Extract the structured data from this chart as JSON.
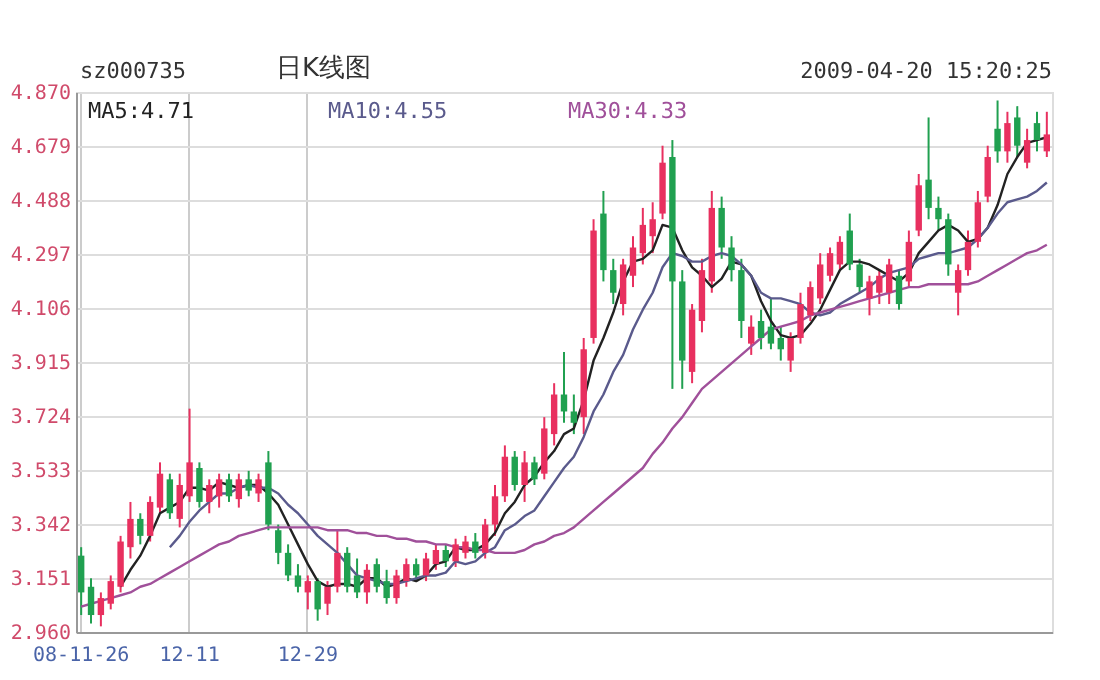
{
  "chart_data": {
    "type": "candlestick",
    "title": "日K线图",
    "annotations": [
      "sz000735",
      "2009-04-20 15:20:25"
    ],
    "categories": [
      "08-11-26",
      null,
      null,
      null,
      null,
      null,
      null,
      null,
      null,
      null,
      null,
      "12-11",
      null,
      null,
      null,
      null,
      null,
      null,
      null,
      null,
      null,
      null,
      null,
      "12-29",
      null,
      null,
      null,
      null,
      null,
      null,
      null,
      null,
      null,
      null,
      null,
      null,
      null,
      null,
      null,
      null,
      null,
      null,
      null,
      null,
      null,
      null,
      null,
      null,
      null,
      null,
      null,
      null,
      null,
      null,
      null,
      null,
      null,
      null,
      null,
      null,
      null,
      null,
      null,
      null,
      null,
      null,
      null,
      null,
      null,
      null,
      null,
      null,
      null,
      null,
      null,
      null,
      null,
      null,
      null,
      null,
      null,
      null,
      null,
      null,
      null,
      null,
      null,
      null,
      null,
      null,
      null,
      null,
      null,
      null,
      null,
      null,
      null,
      null,
      null
    ],
    "ohlc": [
      [
        3.23,
        3.26,
        3.02,
        3.1
      ],
      [
        3.12,
        3.15,
        2.99,
        3.02
      ],
      [
        3.02,
        3.1,
        2.98,
        3.08
      ],
      [
        3.06,
        3.16,
        3.04,
        3.14
      ],
      [
        3.12,
        3.3,
        3.1,
        3.28
      ],
      [
        3.26,
        3.42,
        3.22,
        3.36
      ],
      [
        3.36,
        3.38,
        3.27,
        3.3
      ],
      [
        3.3,
        3.44,
        3.28,
        3.42
      ],
      [
        3.4,
        3.56,
        3.38,
        3.52
      ],
      [
        3.5,
        3.52,
        3.36,
        3.38
      ],
      [
        3.36,
        3.52,
        3.33,
        3.48
      ],
      [
        3.44,
        3.75,
        3.42,
        3.56
      ],
      [
        3.54,
        3.56,
        3.4,
        3.42
      ],
      [
        3.42,
        3.5,
        3.38,
        3.48
      ],
      [
        3.44,
        3.52,
        3.4,
        3.5
      ],
      [
        3.5,
        3.52,
        3.42,
        3.44
      ],
      [
        3.43,
        3.52,
        3.4,
        3.5
      ],
      [
        3.5,
        3.53,
        3.44,
        3.46
      ],
      [
        3.45,
        3.52,
        3.42,
        3.5
      ],
      [
        3.56,
        3.6,
        3.32,
        3.34
      ],
      [
        3.32,
        3.34,
        3.2,
        3.24
      ],
      [
        3.24,
        3.27,
        3.14,
        3.16
      ],
      [
        3.16,
        3.2,
        3.1,
        3.12
      ],
      [
        3.1,
        3.16,
        3.04,
        3.14
      ],
      [
        3.14,
        3.15,
        3.0,
        3.04
      ],
      [
        3.06,
        3.14,
        3.02,
        3.12
      ],
      [
        3.12,
        3.32,
        3.1,
        3.24
      ],
      [
        3.24,
        3.26,
        3.1,
        3.12
      ],
      [
        3.16,
        3.22,
        3.08,
        3.1
      ],
      [
        3.1,
        3.2,
        3.06,
        3.18
      ],
      [
        3.2,
        3.22,
        3.1,
        3.12
      ],
      [
        3.14,
        3.18,
        3.06,
        3.08
      ],
      [
        3.08,
        3.18,
        3.06,
        3.16
      ],
      [
        3.14,
        3.22,
        3.12,
        3.2
      ],
      [
        3.2,
        3.22,
        3.14,
        3.16
      ],
      [
        3.16,
        3.24,
        3.14,
        3.22
      ],
      [
        3.2,
        3.27,
        3.18,
        3.25
      ],
      [
        3.25,
        3.27,
        3.19,
        3.21
      ],
      [
        3.21,
        3.29,
        3.19,
        3.27
      ],
      [
        3.24,
        3.3,
        3.22,
        3.28
      ],
      [
        3.28,
        3.31,
        3.22,
        3.24
      ],
      [
        3.24,
        3.36,
        3.22,
        3.34
      ],
      [
        3.34,
        3.48,
        3.3,
        3.44
      ],
      [
        3.44,
        3.62,
        3.42,
        3.58
      ],
      [
        3.58,
        3.6,
        3.46,
        3.48
      ],
      [
        3.48,
        3.6,
        3.42,
        3.56
      ],
      [
        3.56,
        3.58,
        3.48,
        3.5
      ],
      [
        3.52,
        3.72,
        3.5,
        3.68
      ],
      [
        3.66,
        3.84,
        3.62,
        3.8
      ],
      [
        3.8,
        3.95,
        3.7,
        3.74
      ],
      [
        3.74,
        3.8,
        3.66,
        3.7
      ],
      [
        3.72,
        4.0,
        3.66,
        3.96
      ],
      [
        4.0,
        4.42,
        3.98,
        4.38
      ],
      [
        4.44,
        4.52,
        4.2,
        4.24
      ],
      [
        4.24,
        4.28,
        4.12,
        4.16
      ],
      [
        4.12,
        4.28,
        4.08,
        4.26
      ],
      [
        4.22,
        4.36,
        4.18,
        4.32
      ],
      [
        4.3,
        4.46,
        4.26,
        4.4
      ],
      [
        4.36,
        4.48,
        4.3,
        4.42
      ],
      [
        4.44,
        4.68,
        4.42,
        4.62
      ],
      [
        4.64,
        4.7,
        3.82,
        4.2
      ],
      [
        4.2,
        4.24,
        3.82,
        3.92
      ],
      [
        3.88,
        4.12,
        3.84,
        4.1
      ],
      [
        4.06,
        4.28,
        4.02,
        4.24
      ],
      [
        4.2,
        4.52,
        4.16,
        4.46
      ],
      [
        4.46,
        4.5,
        4.28,
        4.32
      ],
      [
        4.32,
        4.36,
        4.2,
        4.24
      ],
      [
        4.24,
        4.28,
        4.0,
        4.06
      ],
      [
        3.98,
        4.08,
        3.94,
        4.04
      ],
      [
        4.06,
        4.1,
        3.96,
        4.0
      ],
      [
        4.04,
        4.14,
        3.96,
        3.98
      ],
      [
        4.0,
        4.04,
        3.92,
        3.96
      ],
      [
        3.92,
        4.02,
        3.88,
        4.0
      ],
      [
        4.0,
        4.16,
        3.98,
        4.12
      ],
      [
        4.08,
        4.2,
        4.06,
        4.18
      ],
      [
        4.14,
        4.3,
        4.12,
        4.26
      ],
      [
        4.22,
        4.32,
        4.2,
        4.3
      ],
      [
        4.26,
        4.36,
        4.24,
        4.34
      ],
      [
        4.38,
        4.44,
        4.24,
        4.26
      ],
      [
        4.26,
        4.28,
        4.16,
        4.18
      ],
      [
        4.14,
        4.22,
        4.08,
        4.2
      ],
      [
        4.16,
        4.24,
        4.12,
        4.22
      ],
      [
        4.16,
        4.28,
        4.12,
        4.26
      ],
      [
        4.22,
        4.24,
        4.1,
        4.12
      ],
      [
        4.2,
        4.38,
        4.18,
        4.34
      ],
      [
        4.38,
        4.58,
        4.36,
        4.54
      ],
      [
        4.56,
        4.78,
        4.42,
        4.46
      ],
      [
        4.46,
        4.5,
        4.38,
        4.42
      ],
      [
        4.42,
        4.44,
        4.22,
        4.26
      ],
      [
        4.16,
        4.26,
        4.08,
        4.24
      ],
      [
        4.24,
        4.38,
        4.22,
        4.34
      ],
      [
        4.34,
        4.52,
        4.32,
        4.48
      ],
      [
        4.5,
        4.68,
        4.48,
        4.64
      ],
      [
        4.74,
        4.84,
        4.62,
        4.66
      ],
      [
        4.66,
        4.8,
        4.62,
        4.76
      ],
      [
        4.78,
        4.82,
        4.64,
        4.68
      ],
      [
        4.62,
        4.74,
        4.6,
        4.7
      ],
      [
        4.76,
        4.8,
        4.66,
        4.7
      ],
      [
        4.66,
        4.8,
        4.64,
        4.72
      ]
    ],
    "colors": [
      "#20a050",
      "#20a050",
      "#e8305f",
      "#e8305f",
      "#e8305f",
      "#e8305f",
      "#20a050",
      "#e8305f",
      "#e8305f",
      "#20a050",
      "#e8305f",
      "#e8305f",
      "#20a050",
      "#e8305f",
      "#e8305f",
      "#20a050",
      "#e8305f",
      "#20a050",
      "#e8305f",
      "#20a050",
      "#20a050",
      "#20a050",
      "#20a050",
      "#e8305f",
      "#20a050",
      "#e8305f",
      "#e8305f",
      "#20a050",
      "#20a050",
      "#e8305f",
      "#20a050",
      "#20a050",
      "#e8305f",
      "#e8305f",
      "#20a050",
      "#e8305f",
      "#e8305f",
      "#20a050",
      "#e8305f",
      "#e8305f",
      "#20a050",
      "#e8305f",
      "#e8305f",
      "#e8305f",
      "#20a050",
      "#e8305f",
      "#20a050",
      "#e8305f",
      "#e8305f",
      "#20a050",
      "#20a050",
      "#e8305f",
      "#e8305f",
      "#20a050",
      "#20a050",
      "#e8305f",
      "#e8305f",
      "#e8305f",
      "#e8305f",
      "#e8305f",
      "#20a050",
      "#20a050",
      "#e8305f",
      "#e8305f",
      "#e8305f",
      "#20a050",
      "#20a050",
      "#20a050",
      "#e8305f",
      "#20a050",
      "#20a050",
      "#20a050",
      "#e8305f",
      "#e8305f",
      "#e8305f",
      "#e8305f",
      "#e8305f",
      "#e8305f",
      "#20a050",
      "#20a050",
      "#e8305f",
      "#e8305f",
      "#e8305f",
      "#20a050",
      "#e8305f",
      "#e8305f",
      "#20a050",
      "#20a050",
      "#20a050",
      "#e8305f",
      "#e8305f",
      "#e8305f",
      "#e8305f",
      "#20a050",
      "#e8305f",
      "#20a050",
      "#e8305f",
      "#20a050",
      "#e8305f"
    ],
    "series": [
      {
        "type": "line",
        "name": "MA5:4.71",
        "color": "#222222",
        "values": [
          null,
          null,
          null,
          null,
          3.12,
          3.18,
          3.23,
          3.3,
          3.38,
          3.4,
          3.42,
          3.47,
          3.47,
          3.46,
          3.49,
          3.48,
          3.47,
          3.48,
          3.48,
          3.45,
          3.41,
          3.34,
          3.27,
          3.2,
          3.14,
          3.12,
          3.13,
          3.13,
          3.12,
          3.15,
          3.15,
          3.12,
          3.13,
          3.15,
          3.14,
          3.16,
          3.2,
          3.21,
          3.26,
          3.25,
          3.25,
          3.27,
          3.31,
          3.38,
          3.42,
          3.48,
          3.51,
          3.56,
          3.6,
          3.66,
          3.68,
          3.78,
          3.92,
          4.0,
          4.09,
          4.2,
          4.27,
          4.28,
          4.31,
          4.4,
          4.39,
          4.31,
          4.25,
          4.22,
          4.18,
          4.21,
          4.27,
          4.26,
          4.22,
          4.13,
          4.06,
          4.01,
          4.0,
          4.01,
          4.05,
          4.1,
          4.17,
          4.24,
          4.27,
          4.27,
          4.26,
          4.24,
          4.22,
          4.2,
          4.23,
          4.3,
          4.34,
          4.38,
          4.4,
          4.38,
          4.34,
          4.35,
          4.39,
          4.47,
          4.58,
          4.64,
          4.69,
          4.7,
          4.71
        ]
      },
      {
        "type": "line",
        "name": "MA10:4.55",
        "color": "#5a5a8c",
        "values": [
          null,
          null,
          null,
          null,
          null,
          null,
          null,
          null,
          null,
          3.26,
          3.3,
          3.35,
          3.39,
          3.42,
          3.45,
          3.45,
          3.47,
          3.48,
          3.47,
          3.47,
          3.45,
          3.41,
          3.38,
          3.34,
          3.3,
          3.27,
          3.24,
          3.2,
          3.16,
          3.15,
          3.14,
          3.13,
          3.13,
          3.14,
          3.15,
          3.16,
          3.16,
          3.17,
          3.21,
          3.2,
          3.21,
          3.24,
          3.26,
          3.32,
          3.34,
          3.37,
          3.39,
          3.44,
          3.49,
          3.54,
          3.58,
          3.65,
          3.74,
          3.8,
          3.88,
          3.94,
          4.03,
          4.1,
          4.16,
          4.25,
          4.3,
          4.29,
          4.27,
          4.27,
          4.29,
          4.3,
          4.29,
          4.26,
          4.22,
          4.16,
          4.14,
          4.14,
          4.13,
          4.12,
          4.09,
          4.08,
          4.09,
          4.12,
          4.14,
          4.16,
          4.18,
          4.21,
          4.23,
          4.24,
          4.25,
          4.28,
          4.29,
          4.3,
          4.3,
          4.31,
          4.32,
          4.35,
          4.39,
          4.44,
          4.48,
          4.49,
          4.5,
          4.52,
          4.55
        ]
      },
      {
        "type": "line",
        "name": "MA30:4.33",
        "color": "#a0509a",
        "values": [
          3.05,
          3.06,
          3.07,
          3.08,
          3.09,
          3.1,
          3.12,
          3.13,
          3.15,
          3.17,
          3.19,
          3.21,
          3.23,
          3.25,
          3.27,
          3.28,
          3.3,
          3.31,
          3.32,
          3.33,
          3.33,
          3.33,
          3.33,
          3.33,
          3.33,
          3.32,
          3.32,
          3.32,
          3.31,
          3.31,
          3.3,
          3.3,
          3.29,
          3.29,
          3.28,
          3.28,
          3.27,
          3.27,
          3.26,
          3.26,
          3.25,
          3.25,
          3.24,
          3.24,
          3.24,
          3.25,
          3.27,
          3.28,
          3.3,
          3.31,
          3.33,
          3.36,
          3.39,
          3.42,
          3.45,
          3.48,
          3.51,
          3.54,
          3.59,
          3.63,
          3.68,
          3.72,
          3.77,
          3.82,
          3.85,
          3.88,
          3.91,
          3.94,
          3.97,
          4.0,
          4.03,
          4.04,
          4.05,
          4.06,
          4.08,
          4.09,
          4.1,
          4.11,
          4.12,
          4.13,
          4.14,
          4.15,
          4.16,
          4.17,
          4.18,
          4.18,
          4.19,
          4.19,
          4.19,
          4.19,
          4.19,
          4.2,
          4.22,
          4.24,
          4.26,
          4.28,
          4.3,
          4.31,
          4.33
        ]
      }
    ],
    "ylim": [
      2.96,
      4.87
    ],
    "yticks": [
      {
        "value": 2.96,
        "label": "2.960"
      },
      3.151,
      3.342,
      3.533,
      3.724,
      3.915,
      4.106,
      4.297,
      4.488,
      4.679,
      {
        "value": 4.87,
        "label": "4.870"
      }
    ],
    "grid": true,
    "legend": "top left"
  }
}
